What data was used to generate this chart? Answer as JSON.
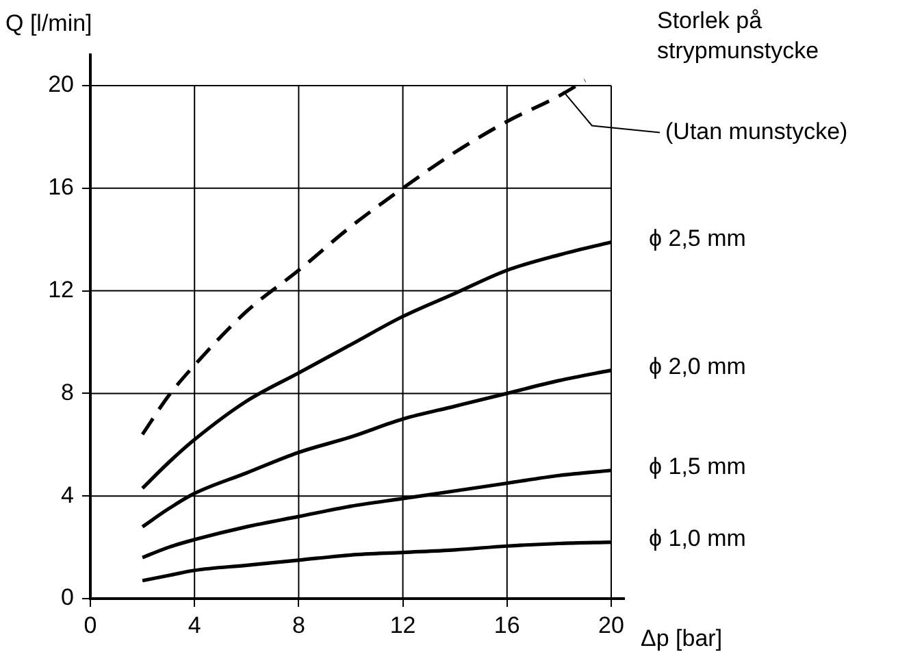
{
  "chart_data": {
    "type": "line",
    "xlabel": "Δp [bar]",
    "ylabel": "Q [l/min]",
    "legend_title": "Storlek på strypmunstycke",
    "xlim": [
      0,
      20.5
    ],
    "ylim": [
      0,
      21.2
    ],
    "xticks": [
      0,
      4,
      8,
      12,
      16,
      20
    ],
    "yticks": [
      0,
      4,
      8,
      12,
      16,
      20
    ],
    "grid": true,
    "marker": "none",
    "x": [
      2,
      3,
      4,
      6,
      8,
      10,
      12,
      14,
      16,
      18,
      20
    ],
    "series": [
      {
        "name": "(Utan munstycke)",
        "color": "#000000",
        "line_style": "dashed",
        "x": [
          2,
          3,
          4,
          6,
          8,
          10,
          12,
          14,
          16,
          18,
          19
        ],
        "values": [
          6.4,
          7.9,
          9.1,
          11.2,
          12.8,
          14.5,
          16.0,
          17.4,
          18.6,
          19.6,
          20.2
        ]
      },
      {
        "name": "ϕ 2,5 mm",
        "color": "#000000",
        "line_style": "solid",
        "values": [
          4.3,
          5.3,
          6.2,
          7.7,
          8.8,
          9.9,
          11.0,
          11.9,
          12.8,
          13.4,
          13.9
        ]
      },
      {
        "name": "ϕ 2,0 mm",
        "color": "#000000",
        "line_style": "solid",
        "values": [
          2.8,
          3.5,
          4.1,
          4.9,
          5.7,
          6.3,
          7.0,
          7.5,
          8.0,
          8.5,
          8.9
        ]
      },
      {
        "name": "ϕ 1,5 mm",
        "color": "#000000",
        "line_style": "solid",
        "values": [
          1.6,
          2.0,
          2.3,
          2.8,
          3.2,
          3.6,
          3.9,
          4.2,
          4.5,
          4.8,
          5.0
        ]
      },
      {
        "name": "ϕ 1,0 mm",
        "color": "#000000",
        "line_style": "solid",
        "values": [
          0.7,
          0.9,
          1.1,
          1.3,
          1.5,
          1.7,
          1.8,
          1.9,
          2.05,
          2.15,
          2.2
        ]
      }
    ]
  }
}
